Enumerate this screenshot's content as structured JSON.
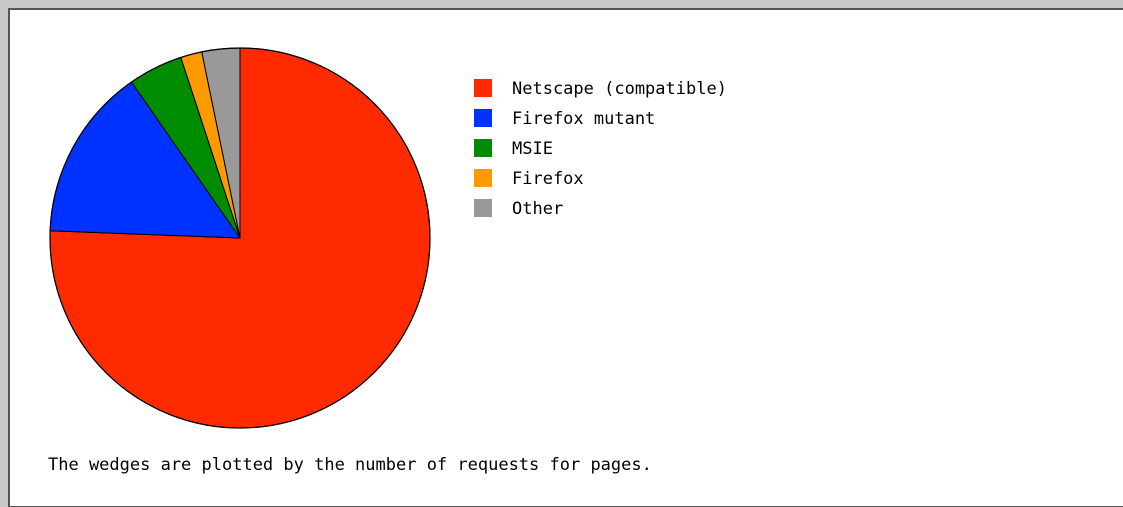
{
  "chart_data": {
    "type": "pie",
    "title": "",
    "caption": "The wedges are plotted by the number of requests for pages.",
    "legend_position": "right",
    "slices": [
      {
        "label": "Netscape (compatible)",
        "value": 75.0,
        "color": "#ff2a00"
      },
      {
        "label": "Firefox mutant",
        "value": 14.6,
        "color": "#0033ff"
      },
      {
        "label": "MSIE",
        "value": 4.6,
        "color": "#008c00"
      },
      {
        "label": "Firefox",
        "value": 1.8,
        "color": "#ff9900"
      },
      {
        "label": "Other",
        "value": 3.2,
        "color": "#999999"
      }
    ]
  }
}
